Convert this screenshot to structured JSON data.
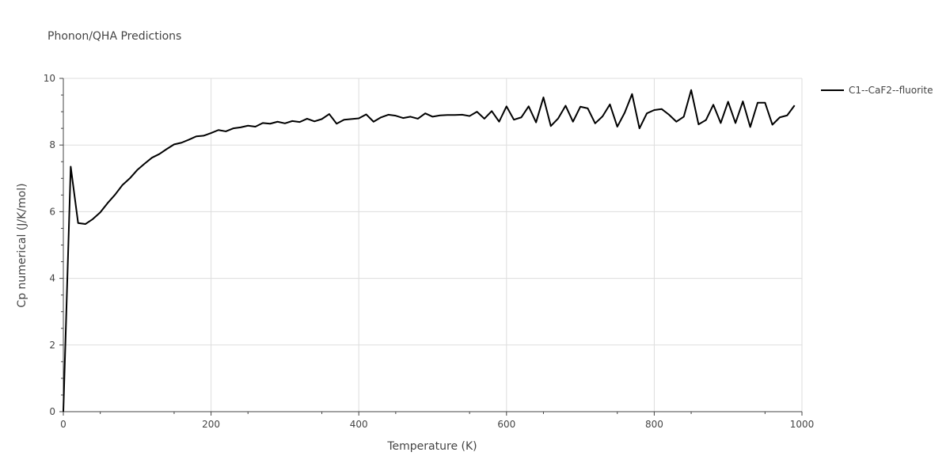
{
  "chart_data": {
    "type": "line",
    "title": "Phonon/QHA Predictions",
    "xlabel": "Temperature (K)",
    "ylabel": "Cp numerical (J/K/mol)",
    "xlim": [
      0,
      1000
    ],
    "ylim": [
      0,
      10
    ],
    "xticks": [
      0,
      200,
      400,
      600,
      800,
      1000
    ],
    "yticks": [
      0,
      2,
      4,
      6,
      8,
      10
    ],
    "grid": true,
    "legend_position": "top-right",
    "series": [
      {
        "name": "C1--CaF2--fluorite",
        "color": "#000000",
        "x": [
          0,
          10,
          20,
          30,
          40,
          50,
          60,
          70,
          80,
          90,
          100,
          110,
          120,
          130,
          140,
          150,
          160,
          170,
          180,
          190,
          200,
          210,
          220,
          230,
          240,
          250,
          260,
          270,
          280,
          290,
          300,
          310,
          320,
          330,
          340,
          350,
          360,
          370,
          380,
          390,
          400,
          410,
          420,
          430,
          440,
          450,
          460,
          470,
          480,
          490,
          500,
          510,
          520,
          530,
          540,
          550,
          560,
          570,
          580,
          590,
          600,
          610,
          620,
          630,
          640,
          650,
          660,
          670,
          680,
          690,
          700,
          710,
          720,
          730,
          740,
          750,
          760,
          770,
          780,
          790,
          800,
          810,
          820,
          830,
          840,
          850,
          860,
          870,
          880,
          890,
          900,
          910,
          920,
          930,
          940,
          950,
          960,
          970,
          980,
          990
        ],
        "y": [
          0,
          7.35,
          5.66,
          5.63,
          5.78,
          5.98,
          6.26,
          6.51,
          6.8,
          7.0,
          7.25,
          7.44,
          7.62,
          7.73,
          7.88,
          8.02,
          8.07,
          8.16,
          8.26,
          8.28,
          8.36,
          8.45,
          8.41,
          8.5,
          8.53,
          8.58,
          8.55,
          8.66,
          8.64,
          8.7,
          8.65,
          8.72,
          8.69,
          8.79,
          8.71,
          8.78,
          8.93,
          8.64,
          8.76,
          8.78,
          8.8,
          8.92,
          8.7,
          8.83,
          8.91,
          8.88,
          8.81,
          8.85,
          8.79,
          8.95,
          8.85,
          8.89,
          8.9,
          8.9,
          8.91,
          8.87,
          9.0,
          8.79,
          9.02,
          8.7,
          9.16,
          8.76,
          8.83,
          9.16,
          8.68,
          9.43,
          8.57,
          8.8,
          9.18,
          8.7,
          9.15,
          9.1,
          8.65,
          8.86,
          9.22,
          8.55,
          8.97,
          9.53,
          8.5,
          8.95,
          9.05,
          9.08,
          8.91,
          8.7,
          8.85,
          9.65,
          8.62,
          8.75,
          9.21,
          8.66,
          9.3,
          8.66,
          9.31,
          8.54,
          9.27,
          9.27,
          8.61,
          8.83,
          8.89,
          9.19
        ]
      }
    ]
  }
}
